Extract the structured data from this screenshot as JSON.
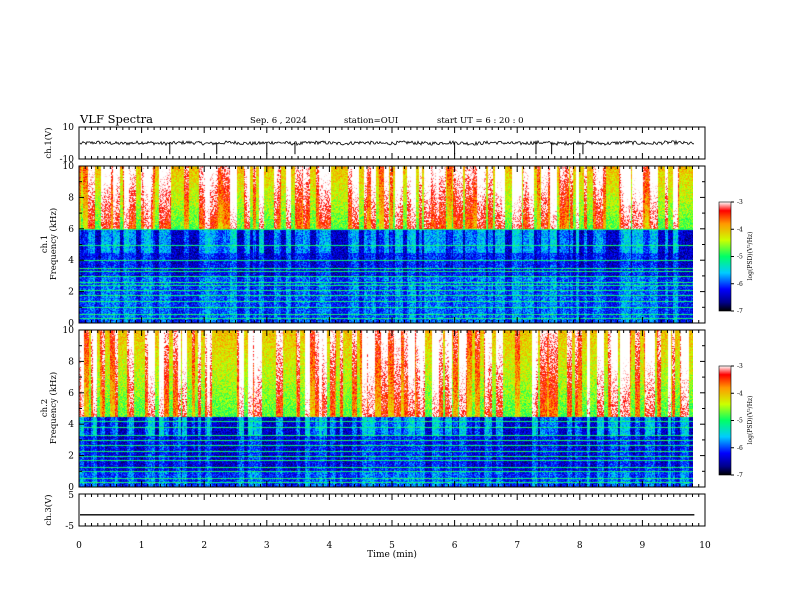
{
  "header": {
    "title": "VLF Spectra",
    "date": "Sep. 6 , 2024",
    "station": "station=OUI",
    "start": "start UT =  6 : 20 : 0"
  },
  "chart_data": [
    {
      "id": "ch1_waveform",
      "type": "line",
      "ylabel": "ch.1(V)",
      "ylim": [
        -10,
        10
      ],
      "yticks": [
        "10",
        "-10"
      ],
      "mean_level": 0,
      "noise_amplitude": 1.1,
      "spike_times_min": [
        1.45,
        2.2,
        3.0,
        3.45,
        6.0,
        7.3,
        7.55,
        7.9,
        8.05
      ]
    },
    {
      "id": "ch1_spectrogram",
      "type": "heatmap",
      "ylabel_line1": "ch.1",
      "ylabel_line2": "Frequency (kHz)",
      "ylim": [
        0,
        10
      ],
      "yticks": [
        "0",
        "2",
        "4",
        "6",
        "8",
        "10"
      ],
      "colorbar": {
        "label": "log(PSD)(V²/Hz)",
        "ticks": [
          "-3",
          "-4",
          "-5",
          "-6",
          "-7"
        ],
        "range": [
          -7,
          -3
        ]
      },
      "quiet_band_khz": [
        3.0,
        6.0
      ],
      "lines_khz": [
        0.3,
        0.6,
        1.0,
        1.4,
        1.8,
        2.1,
        2.4,
        2.6,
        3.0,
        3.3,
        3.5,
        4.0,
        5.0,
        6.0
      ]
    },
    {
      "id": "ch2_spectrogram",
      "type": "heatmap",
      "ylabel_line1": "ch.2",
      "ylabel_line2": "Frequency (kHz)",
      "ylim": [
        0,
        10
      ],
      "yticks": [
        "0",
        "2",
        "4",
        "6",
        "8",
        "10"
      ],
      "colorbar": {
        "label": "log(PSD)(V²/Hz)",
        "ticks": [
          "-3",
          "-4",
          "-5",
          "-6",
          "-7"
        ],
        "range": [
          -7,
          -3
        ]
      },
      "quiet_band_khz": [
        1.0,
        4.5
      ],
      "lines_khz": [
        0.3,
        0.6,
        1.0,
        1.3,
        1.7,
        2.0,
        2.3,
        2.7,
        3.0,
        3.3,
        3.8,
        4.2
      ]
    },
    {
      "id": "ch3_waveform",
      "type": "line",
      "ylabel": "ch.3(V)",
      "ylim": [
        -5,
        5
      ],
      "yticks": [
        "5",
        "-5"
      ],
      "constant_value": -1.5
    }
  ],
  "xaxis": {
    "label": "Time (min)",
    "range": [
      0,
      10
    ],
    "ticks": [
      "0",
      "1",
      "2",
      "3",
      "4",
      "5",
      "6",
      "7",
      "8",
      "9",
      "10"
    ],
    "data_end_min": 9.83
  }
}
